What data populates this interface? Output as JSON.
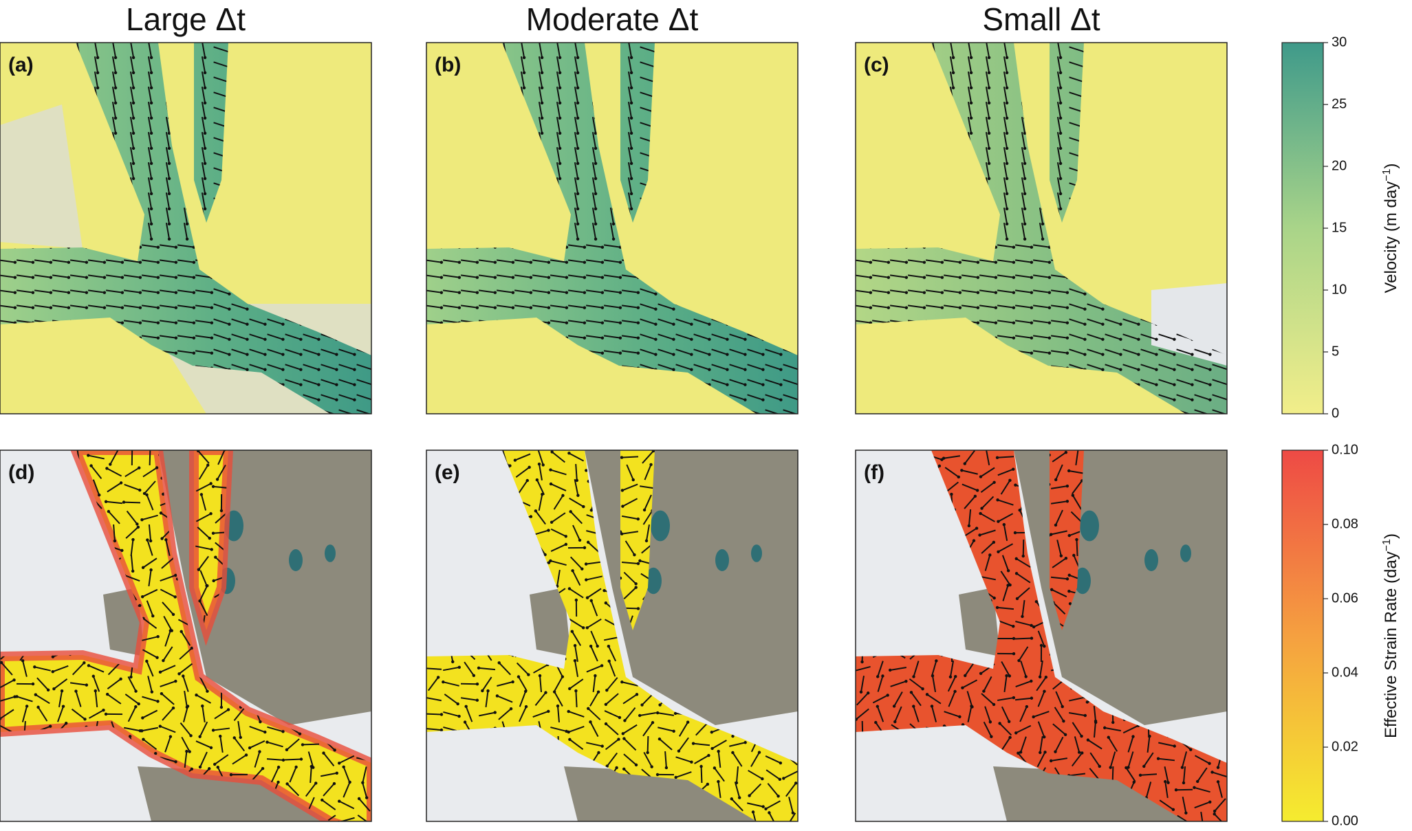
{
  "columns": [
    "Large Δt",
    "Moderate Δt",
    "Small Δt"
  ],
  "panels": [
    "(a)",
    "(b)",
    "(c)",
    "(d)",
    "(e)",
    "(f)"
  ],
  "colorbars": [
    {
      "label": {
        "text": "Velocity (m day",
        "sup": "−1",
        "end": ")"
      },
      "ylim": [
        0,
        30
      ],
      "yticks": [
        0,
        5,
        10,
        15,
        20,
        25,
        30
      ],
      "colors": [
        "#f2ee8a",
        "#a9d489",
        "#3f9a8a"
      ]
    },
    {
      "label": {
        "text": "Effective Strain Rate (day",
        "sup": "−1",
        "end": ")"
      },
      "ylim": [
        0,
        0.1
      ],
      "yticks": [
        {
          "value": 0,
          "label": "0.00"
        },
        0.02,
        0.04,
        0.06,
        0.08,
        {
          "value": 0.1,
          "label": "0.10"
        }
      ],
      "colors": [
        "#f5ec2f",
        "#f5a040",
        "#ee4a45"
      ]
    }
  ]
}
